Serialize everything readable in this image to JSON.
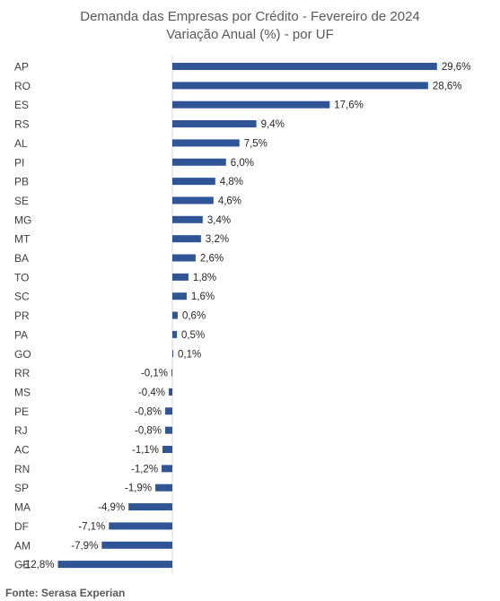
{
  "chart_data": {
    "type": "bar",
    "orientation": "horizontal",
    "title": "Demanda das Empresas por Crédito - Fevereiro de 2024",
    "subtitle": "Variação Anual (%) - por UF",
    "categories": [
      "AP",
      "RO",
      "ES",
      "RS",
      "AL",
      "PI",
      "PB",
      "SE",
      "MG",
      "MT",
      "BA",
      "TO",
      "SC",
      "PR",
      "PA",
      "GO",
      "RR",
      "MS",
      "PE",
      "RJ",
      "AC",
      "RN",
      "SP",
      "MA",
      "DF",
      "AM",
      "GE"
    ],
    "values": [
      29.6,
      28.6,
      17.6,
      9.4,
      7.5,
      6.0,
      4.8,
      4.6,
      3.4,
      3.2,
      2.6,
      1.8,
      1.6,
      0.6,
      0.5,
      0.1,
      -0.1,
      -0.4,
      -0.8,
      -0.8,
      -1.1,
      -1.2,
      -1.9,
      -4.9,
      -7.1,
      -7.9,
      -12.8
    ],
    "data_labels": [
      "29,6%",
      "28,6%",
      "17,6%",
      "9,4%",
      "7,5%",
      "6,0%",
      "4,8%",
      "4,6%",
      "3,4%",
      "3,2%",
      "2,6%",
      "1,8%",
      "1,6%",
      "0,6%",
      "0,5%",
      "0,1%",
      "-0,1%",
      "-0,4%",
      "-0,8%",
      "-0,8%",
      "-1,1%",
      "-1,2%",
      "-1,9%",
      "-4,9%",
      "-7,1%",
      "-7,9%",
      "-12,8%"
    ],
    "bar_color": "#2F5597",
    "grid": false,
    "legend": "none",
    "source": "Fonte: Serasa Experian"
  }
}
